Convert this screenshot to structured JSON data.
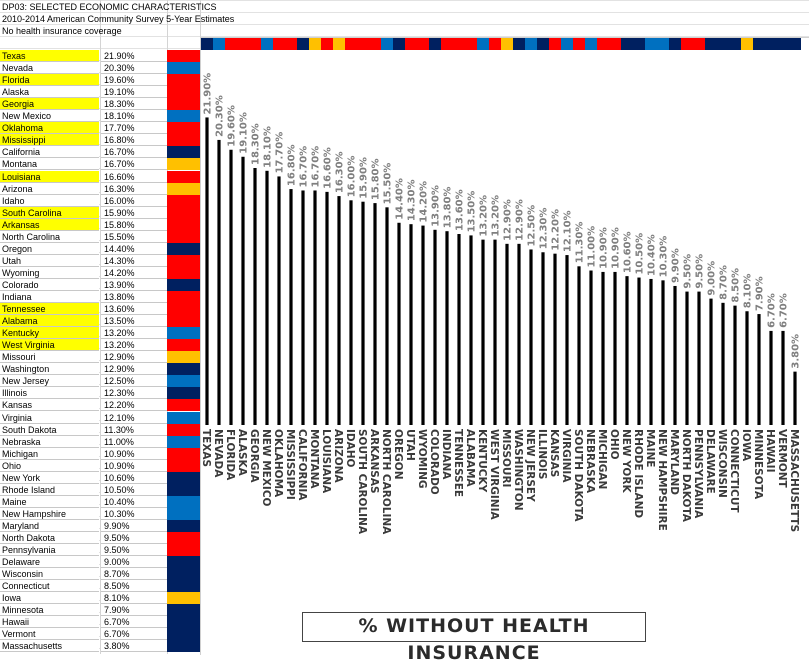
{
  "header": {
    "line1": "DP03: SELECTED ECONOMIC CHARACTERISTICS",
    "line2": "2010-2014 American Community Survey 5-Year Estimates",
    "line3": "No health insurance coverage"
  },
  "colors": {
    "red": "#ff0000",
    "blue": "#0070c0",
    "navy": "#002060",
    "gold": "#ffc000",
    "highlight": "#ffff00",
    "bar": "#000000",
    "label": "#7f7f7f"
  },
  "chart_data": {
    "type": "bar",
    "title": "% WITHOUT HEALTH INSURANCE",
    "xlabel": "",
    "ylabel": "",
    "ylim": [
      0,
      23
    ],
    "grid": false,
    "categories": [
      "TEXAS",
      "NEVADA",
      "FLORIDA",
      "ALASKA",
      "GEORGIA",
      "NEW MEXICO",
      "OKLAHOMA",
      "MISSISSIPPI",
      "CALIFORNIA",
      "MONTANA",
      "LOUISIANA",
      "ARIZONA",
      "IDAHO",
      "SOUTH CAROLINA",
      "ARKANSAS",
      "NORTH CAROLINA",
      "OREGON",
      "UTAH",
      "WYOMING",
      "COLORADO",
      "INDIANA",
      "TENNESSEE",
      "ALABAMA",
      "KENTUCKY",
      "WEST VIRGINIA",
      "MISSOURI",
      "WASHINGTON",
      "NEW JERSEY",
      "ILLINOIS",
      "KANSAS",
      "VIRGINIA",
      "SOUTH DAKOTA",
      "NEBRASKA",
      "MICHIGAN",
      "OHIO",
      "NEW YORK",
      "RHODE ISLAND",
      "MAINE",
      "NEW HAMPSHIRE",
      "MARYLAND",
      "NORTH DAKOTA",
      "PENNSYLVANIA",
      "DELAWARE",
      "WISCONSIN",
      "CONNECTICUT",
      "IOWA",
      "MINNESOTA",
      "HAWAII",
      "VERMONT",
      "MASSACHUSETTS"
    ],
    "values": [
      21.9,
      20.3,
      19.6,
      19.1,
      18.3,
      18.1,
      17.7,
      16.8,
      16.7,
      16.7,
      16.6,
      16.3,
      16.0,
      15.9,
      15.8,
      15.5,
      14.4,
      14.3,
      14.2,
      13.9,
      13.8,
      13.6,
      13.5,
      13.2,
      13.2,
      12.9,
      12.9,
      12.5,
      12.3,
      12.2,
      12.1,
      11.3,
      11.0,
      10.9,
      10.9,
      10.6,
      10.5,
      10.4,
      10.3,
      9.9,
      9.5,
      9.5,
      9.0,
      8.7,
      8.5,
      8.1,
      7.9,
      6.7,
      6.7,
      3.8
    ],
    "value_labels": [
      "21.90%",
      "20.30%",
      "19.60%",
      "19.10%",
      "18.30%",
      "18.10%",
      "17.70%",
      "16.80%",
      "16.70%",
      "16.70%",
      "16.60%",
      "16.30%",
      "16.00%",
      "15.90%",
      "15.80%",
      "15.50%",
      "14.40%",
      "14.30%",
      "14.20%",
      "13.90%",
      "13.80%",
      "13.60%",
      "13.50%",
      "13.20%",
      "13.20%",
      "12.90%",
      "12.90%",
      "12.50%",
      "12.30%",
      "12.20%",
      "12.10%",
      "11.30%",
      "11.00%",
      "10.90%",
      "10.90%",
      "10.60%",
      "10.50%",
      "10.40%",
      "10.30%",
      "9.90%",
      "9.50%",
      "9.50%",
      "9.00%",
      "8.70%",
      "8.50%",
      "8.10%",
      "7.90%",
      "6.70%",
      "6.70%",
      "3.80%"
    ],
    "strip_colors": [
      "navy",
      "blue",
      "red",
      "red",
      "red",
      "blue",
      "red",
      "red",
      "navy",
      "gold",
      "red",
      "gold",
      "red",
      "red",
      "red",
      "blue",
      "navy",
      "red",
      "red",
      "navy",
      "red",
      "red",
      "red",
      "blue",
      "red",
      "gold",
      "navy",
      "blue",
      "navy",
      "red",
      "blue",
      "red",
      "blue",
      "red",
      "red",
      "navy",
      "navy",
      "blue",
      "blue",
      "navy",
      "red",
      "red",
      "navy",
      "navy",
      "navy",
      "gold",
      "navy",
      "navy",
      "navy",
      "navy"
    ]
  },
  "table": {
    "rows": [
      {
        "state": "Texas",
        "pct": "21.90%",
        "highlight": true,
        "color": "red"
      },
      {
        "state": "Nevada",
        "pct": "20.30%",
        "highlight": false,
        "color": "blue"
      },
      {
        "state": "Florida",
        "pct": "19.60%",
        "highlight": true,
        "color": "red"
      },
      {
        "state": "Alaska",
        "pct": "19.10%",
        "highlight": false,
        "color": "red"
      },
      {
        "state": "Georgia",
        "pct": "18.30%",
        "highlight": true,
        "color": "red"
      },
      {
        "state": "New Mexico",
        "pct": "18.10%",
        "highlight": false,
        "color": "blue"
      },
      {
        "state": "Oklahoma",
        "pct": "17.70%",
        "highlight": true,
        "color": "red"
      },
      {
        "state": "Mississippi",
        "pct": "16.80%",
        "highlight": true,
        "color": "red"
      },
      {
        "state": "California",
        "pct": "16.70%",
        "highlight": false,
        "color": "navy"
      },
      {
        "state": "Montana",
        "pct": "16.70%",
        "highlight": false,
        "color": "gold"
      },
      {
        "state": "Louisiana",
        "pct": "16.60%",
        "highlight": true,
        "color": "red"
      },
      {
        "state": "Arizona",
        "pct": "16.30%",
        "highlight": false,
        "color": "gold"
      },
      {
        "state": "Idaho",
        "pct": "16.00%",
        "highlight": false,
        "color": "red"
      },
      {
        "state": "South Carolina",
        "pct": "15.90%",
        "highlight": true,
        "color": "red"
      },
      {
        "state": "Arkansas",
        "pct": "15.80%",
        "highlight": true,
        "color": "red"
      },
      {
        "state": "North Carolina",
        "pct": "15.50%",
        "highlight": false,
        "color": "red"
      },
      {
        "state": "Oregon",
        "pct": "14.40%",
        "highlight": false,
        "color": "navy"
      },
      {
        "state": "Utah",
        "pct": "14.30%",
        "highlight": false,
        "color": "red"
      },
      {
        "state": "Wyoming",
        "pct": "14.20%",
        "highlight": false,
        "color": "red"
      },
      {
        "state": "Colorado",
        "pct": "13.90%",
        "highlight": false,
        "color": "navy"
      },
      {
        "state": "Indiana",
        "pct": "13.80%",
        "highlight": false,
        "color": "red"
      },
      {
        "state": "Tennessee",
        "pct": "13.60%",
        "highlight": true,
        "color": "red"
      },
      {
        "state": "Alabama",
        "pct": "13.50%",
        "highlight": true,
        "color": "red"
      },
      {
        "state": "Kentucky",
        "pct": "13.20%",
        "highlight": true,
        "color": "blue"
      },
      {
        "state": "West Virginia",
        "pct": "13.20%",
        "highlight": true,
        "color": "red"
      },
      {
        "state": "Missouri",
        "pct": "12.90%",
        "highlight": false,
        "color": "gold"
      },
      {
        "state": "Washington",
        "pct": "12.90%",
        "highlight": false,
        "color": "navy"
      },
      {
        "state": "New Jersey",
        "pct": "12.50%",
        "highlight": false,
        "color": "blue"
      },
      {
        "state": "Illinois",
        "pct": "12.30%",
        "highlight": false,
        "color": "navy"
      },
      {
        "state": "Kansas",
        "pct": "12.20%",
        "highlight": false,
        "color": "red"
      },
      {
        "state": "Virginia",
        "pct": "12.10%",
        "highlight": false,
        "color": "blue"
      },
      {
        "state": "South Dakota",
        "pct": "11.30%",
        "highlight": false,
        "color": "red"
      },
      {
        "state": "Nebraska",
        "pct": "11.00%",
        "highlight": false,
        "color": "blue"
      },
      {
        "state": "Michigan",
        "pct": "10.90%",
        "highlight": false,
        "color": "red"
      },
      {
        "state": "Ohio",
        "pct": "10.90%",
        "highlight": false,
        "color": "red"
      },
      {
        "state": "New York",
        "pct": "10.60%",
        "highlight": false,
        "color": "navy"
      },
      {
        "state": "Rhode Island",
        "pct": "10.50%",
        "highlight": false,
        "color": "navy"
      },
      {
        "state": "Maine",
        "pct": "10.40%",
        "highlight": false,
        "color": "blue"
      },
      {
        "state": "New Hampshire",
        "pct": "10.30%",
        "highlight": false,
        "color": "blue"
      },
      {
        "state": "Maryland",
        "pct": "9.90%",
        "highlight": false,
        "color": "navy"
      },
      {
        "state": "North Dakota",
        "pct": "9.50%",
        "highlight": false,
        "color": "red"
      },
      {
        "state": "Pennsylvania",
        "pct": "9.50%",
        "highlight": false,
        "color": "red"
      },
      {
        "state": "Delaware",
        "pct": "9.00%",
        "highlight": false,
        "color": "navy"
      },
      {
        "state": "Wisconsin",
        "pct": "8.70%",
        "highlight": false,
        "color": "navy"
      },
      {
        "state": "Connecticut",
        "pct": "8.50%",
        "highlight": false,
        "color": "navy"
      },
      {
        "state": "Iowa",
        "pct": "8.10%",
        "highlight": false,
        "color": "gold"
      },
      {
        "state": "Minnesota",
        "pct": "7.90%",
        "highlight": false,
        "color": "navy"
      },
      {
        "state": "Hawaii",
        "pct": "6.70%",
        "highlight": false,
        "color": "navy"
      },
      {
        "state": "Vermont",
        "pct": "6.70%",
        "highlight": false,
        "color": "navy"
      },
      {
        "state": "Massachusetts",
        "pct": "3.80%",
        "highlight": false,
        "color": "navy"
      }
    ]
  }
}
